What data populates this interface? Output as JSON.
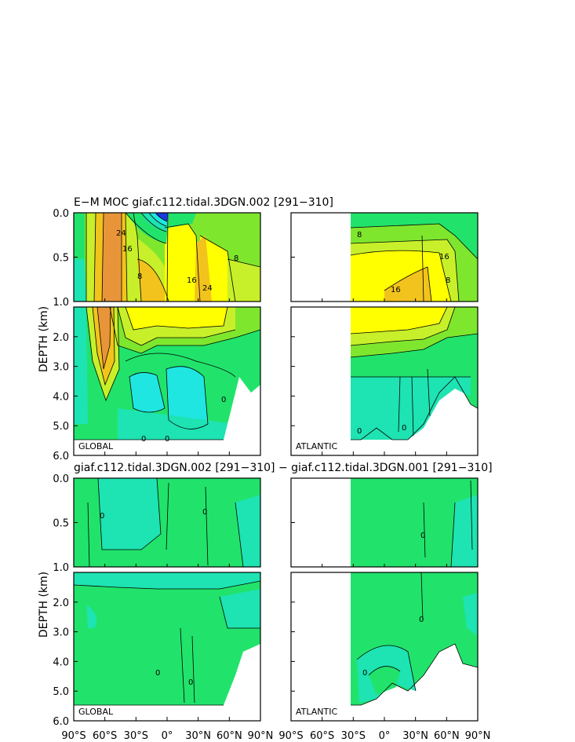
{
  "chart_data": {
    "type": "heatmap",
    "titles": {
      "top": "E−M MOC   giaf.c112.tidal.3DGN.002  [291−310]",
      "bottom": "giaf.c112.tidal.3DGN.002  [291−310]  −  giaf.c112.tidal.3DGN.001  [291−310]"
    },
    "ylabel": "DEPTH (km)",
    "x_ticks": [
      "90°S",
      "60°S",
      "30°S",
      "0°",
      "30°N",
      "60°N",
      "90°N"
    ],
    "y_ticks_upper": [
      "0.0",
      "0.5",
      "1.0"
    ],
    "y_ticks_lower": [
      "2.0",
      "3.0",
      "4.0",
      "5.0",
      "6.0"
    ],
    "xlim": [
      -90,
      90
    ],
    "ylim_upper": [
      0,
      1
    ],
    "ylim_lower": [
      1,
      6
    ],
    "regions": [
      "GLOBAL",
      "ATLANTIC"
    ],
    "contour_labels_top_global": [
      "24",
      "16",
      "8",
      "0",
      "16",
      "24",
      "8",
      "0",
      "0",
      "0"
    ],
    "contour_labels_top_atlantic": [
      "8",
      "16",
      "16",
      "8",
      "0",
      "0",
      "0",
      "0"
    ],
    "contour_labels_bottom": [
      "0",
      "0",
      "0",
      "0",
      "0",
      "0",
      "0",
      "0"
    ],
    "colors": {
      "orange": "#e8953a",
      "gold": "#f2c31c",
      "yellow": "#ffff00",
      "yellowgreen": "#c8f02a",
      "lime": "#7fe62e",
      "green": "#21e36b",
      "teal": "#1ee3b2",
      "cyan": "#1fe6e0",
      "blue": "#1a3adb"
    }
  }
}
